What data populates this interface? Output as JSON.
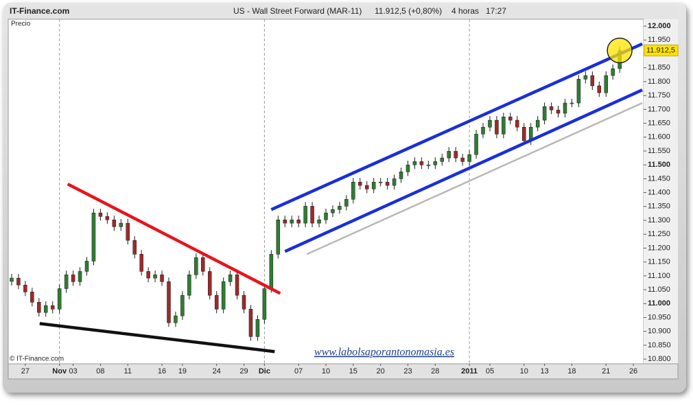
{
  "header": {
    "site": "IT-Finance.com",
    "instrument": "US - Wall Street Forward (MAR-11)",
    "quote": "11.912,5 (+0,80%)",
    "interval": "4 horas",
    "time": "17:27"
  },
  "chart_data": {
    "type": "candlestick",
    "y_label": "Precio",
    "copyright": "© IT-Finance.com",
    "watermark": "www.labolsaporantonomasia.es",
    "categories": [
      null,
      null,
      "27",
      null,
      null,
      null,
      null,
      "Nov",
      null,
      "03",
      null,
      null,
      null,
      "08",
      null,
      null,
      null,
      "11",
      null,
      null,
      null,
      null,
      "16",
      null,
      null,
      "19",
      null,
      null,
      null,
      null,
      "24",
      null,
      null,
      null,
      "29",
      null,
      null,
      "Dic",
      null,
      null,
      null,
      null,
      "07",
      null,
      null,
      null,
      "10",
      null,
      null,
      null,
      "15",
      null,
      null,
      null,
      "20",
      null,
      null,
      null,
      "23",
      null,
      null,
      null,
      "28",
      null,
      null,
      null,
      null,
      "2011",
      null,
      null,
      "05",
      null,
      null,
      null,
      null,
      "10",
      null,
      null,
      "13",
      null,
      null,
      null,
      "18",
      null,
      null,
      null,
      null,
      "21",
      null,
      null,
      null,
      "26",
      null
    ],
    "open": [
      11080,
      11092,
      11067,
      11042,
      11005,
      10968,
      10993,
      10980,
      11054,
      11104,
      11079,
      11116,
      11153,
      11327,
      11314,
      11302,
      11277,
      11290,
      11228,
      11178,
      11116,
      11092,
      11104,
      11079,
      10931,
      10956,
      11030,
      11104,
      11166,
      11116,
      11030,
      10980,
      11079,
      11104,
      11030,
      10980,
      10881,
      10943,
      11054,
      11178,
      11302,
      11290,
      11302,
      11290,
      11351,
      11290,
      11302,
      11327,
      11339,
      11351,
      11376,
      11438,
      11426,
      11413,
      11438,
      11438,
      11426,
      11450,
      11475,
      11500,
      11512,
      11500,
      11500,
      11512,
      11525,
      11549,
      11525,
      11512,
      11537,
      11611,
      11636,
      11661,
      11611,
      11673,
      11661,
      11636,
      11587,
      11636,
      11661,
      11710,
      11698,
      11686,
      11723,
      11723,
      11809,
      11822,
      11785,
      11760,
      11822,
      11847,
      null,
      null,
      null
    ],
    "high": [
      11107,
      11107,
      11082,
      11057,
      11020,
      11008,
      11008,
      11069,
      11119,
      11119,
      11131,
      11168,
      11342,
      11342,
      11329,
      11317,
      11305,
      11305,
      11243,
      11193,
      11131,
      11119,
      11119,
      11094,
      10971,
      11045,
      11119,
      11181,
      11181,
      11131,
      11045,
      11094,
      11119,
      11119,
      11045,
      10995,
      10958,
      11069,
      11193,
      11317,
      11317,
      11317,
      11317,
      11366,
      11366,
      11317,
      11342,
      11354,
      11366,
      11391,
      11453,
      11453,
      11441,
      11453,
      11453,
      11453,
      11465,
      11490,
      11515,
      11527,
      11527,
      11515,
      11527,
      11540,
      11564,
      11564,
      11540,
      11552,
      11626,
      11651,
      11676,
      11676,
      11688,
      11688,
      11676,
      11651,
      11651,
      11676,
      11725,
      11725,
      11713,
      11738,
      11738,
      11824,
      11837,
      11837,
      11800,
      11837,
      11862,
      11927,
      null,
      null,
      null
    ],
    "low": [
      11065,
      11052,
      11027,
      10990,
      10953,
      10953,
      10965,
      10965,
      11039,
      11064,
      11064,
      11101,
      11138,
      11299,
      11287,
      11262,
      11262,
      11213,
      11163,
      11101,
      11077,
      11077,
      11064,
      10916,
      10916,
      10941,
      11015,
      11089,
      11101,
      11015,
      10965,
      10965,
      11064,
      11015,
      10965,
      10866,
      10866,
      10928,
      11039,
      11163,
      11275,
      11275,
      11275,
      11275,
      11275,
      11275,
      11287,
      11312,
      11324,
      11336,
      11361,
      11411,
      11398,
      11398,
      11423,
      11411,
      11411,
      11435,
      11460,
      11485,
      11485,
      11485,
      11485,
      11497,
      11510,
      11510,
      11497,
      11497,
      11522,
      11596,
      11621,
      11596,
      11596,
      11646,
      11621,
      11572,
      11572,
      11621,
      11646,
      11683,
      11671,
      11671,
      11708,
      11708,
      11794,
      11770,
      11745,
      11745,
      11807,
      11832,
      null,
      null,
      null
    ],
    "close": [
      11092,
      11067,
      11042,
      11005,
      10968,
      10993,
      10980,
      11054,
      11104,
      11079,
      11116,
      11153,
      11327,
      11314,
      11302,
      11277,
      11290,
      11228,
      11178,
      11116,
      11092,
      11104,
      11079,
      10931,
      10956,
      11030,
      11104,
      11166,
      11116,
      11030,
      10980,
      11079,
      11104,
      11030,
      10980,
      10881,
      10943,
      11054,
      11178,
      11302,
      11290,
      11302,
      11290,
      11351,
      11290,
      11302,
      11327,
      11339,
      11351,
      11376,
      11438,
      11426,
      11413,
      11438,
      11438,
      11426,
      11450,
      11475,
      11500,
      11512,
      11500,
      11500,
      11512,
      11525,
      11549,
      11525,
      11512,
      11537,
      11611,
      11636,
      11661,
      11611,
      11673,
      11661,
      11636,
      11587,
      11636,
      11661,
      11710,
      11698,
      11686,
      11723,
      11723,
      11809,
      11822,
      11785,
      11760,
      11822,
      11847,
      11912.5,
      null,
      null,
      null
    ],
    "colors": {
      "up": "#2f7d32",
      "down": "#9e2a2a",
      "wick": "#1a1a1a"
    },
    "last_price": {
      "value": 11912.5,
      "label": "11.912,5"
    },
    "trendlines": [
      {
        "color": "#e8141c",
        "weight": "thick",
        "x": [
          8.2,
          39.3
        ],
        "y": [
          11431,
          11037
        ]
      },
      {
        "color": "#111111",
        "weight": "thick",
        "x": [
          4.1,
          38.5
        ],
        "y": [
          10928,
          10827
        ]
      },
      {
        "color": "#1a2fd8",
        "weight": "thick",
        "x": [
          38.0,
          92.3
        ],
        "y": [
          11339,
          11936
        ]
      },
      {
        "color": "#1a2fd8",
        "weight": "thick",
        "x": [
          40.0,
          92.3
        ],
        "y": [
          11188,
          11770
        ]
      },
      {
        "color": "#b8b8b8",
        "weight": "thin",
        "x": [
          43.2,
          92.3
        ],
        "y": [
          11178,
          11723
        ]
      }
    ],
    "ylim": [
      10783,
      12025
    ],
    "yticks": [
      {
        "value": 10800,
        "label": "10.800"
      },
      {
        "value": 10850,
        "label": "10.850"
      },
      {
        "value": 10900,
        "label": "10.900"
      },
      {
        "value": 10950,
        "label": "10.950"
      },
      {
        "value": 11000,
        "label": "11.000"
      },
      {
        "value": 11050,
        "label": "11.050"
      },
      {
        "value": 11100,
        "label": "11.100"
      },
      {
        "value": 11150,
        "label": "11.150"
      },
      {
        "value": 11200,
        "label": "11.200"
      },
      {
        "value": 11250,
        "label": "11.250"
      },
      {
        "value": 11300,
        "label": "11.300"
      },
      {
        "value": 11350,
        "label": "11.350"
      },
      {
        "value": 11400,
        "label": "11.400"
      },
      {
        "value": 11450,
        "label": "11.450"
      },
      {
        "value": 11500,
        "label": "11.500"
      },
      {
        "value": 11550,
        "label": "11.550"
      },
      {
        "value": 11600,
        "label": "11.600"
      },
      {
        "value": 11650,
        "label": "11.650"
      },
      {
        "value": 11700,
        "label": "11.700"
      },
      {
        "value": 11750,
        "label": "11.750"
      },
      {
        "value": 11800,
        "label": "11.800"
      },
      {
        "value": 11850,
        "label": "11.850"
      },
      {
        "value": 11900,
        "label": "11.900"
      },
      {
        "value": 11950,
        "label": "11.950"
      },
      {
        "value": 12000,
        "label": "12.000"
      }
    ]
  }
}
